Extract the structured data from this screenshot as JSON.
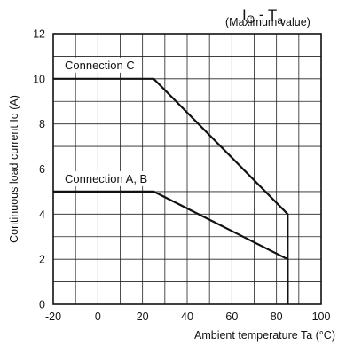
{
  "chart_data": {
    "type": "line",
    "title": {
      "main": "I",
      "main_sub": "O",
      "dash": " - T",
      "dash_sub": "a",
      "qualifier": "(Maximum value)"
    },
    "xlabel": "Ambient temperature Ta (°C)",
    "ylabel": "Continuous load current Io (A)",
    "xlim": [
      -20,
      100
    ],
    "ylim": [
      0,
      12
    ],
    "x_ticks": [
      "-20",
      "0",
      "20",
      "40",
      "60",
      "80",
      "100"
    ],
    "y_ticks": [
      "0",
      "2",
      "4",
      "6",
      "8",
      "10",
      "12"
    ],
    "grid": true,
    "series": [
      {
        "name": "Connection C",
        "points": [
          [
            -20,
            10
          ],
          [
            25,
            10
          ],
          [
            85,
            4
          ],
          [
            85,
            0
          ]
        ]
      },
      {
        "name": "Connection A, B",
        "points": [
          [
            -20,
            5
          ],
          [
            25,
            5
          ],
          [
            85,
            2
          ],
          [
            85,
            0
          ]
        ]
      }
    ]
  }
}
